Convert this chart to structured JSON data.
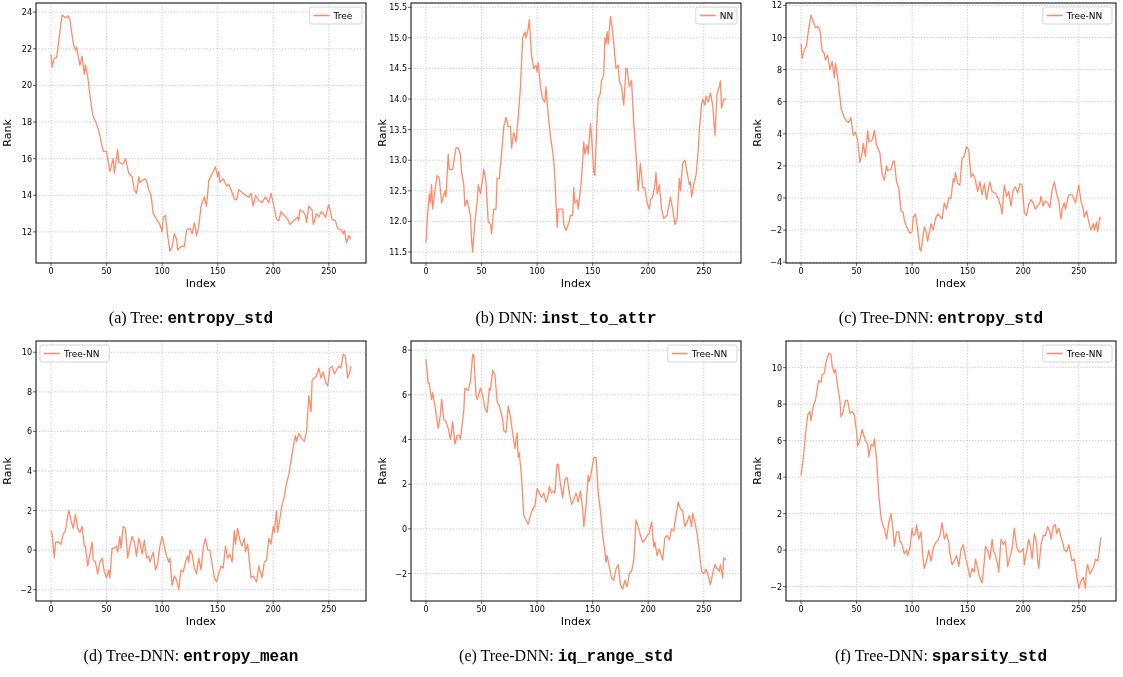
{
  "chart_data": [
    {
      "type": "line",
      "title": "(a) Tree: entropy_std",
      "xlabel": "Index",
      "ylabel": "Rank",
      "xlim": [
        -13.5,
        283.5
      ],
      "xticks": [
        0,
        50,
        100,
        150,
        200,
        250
      ],
      "ylim": [
        10.3,
        24.5
      ],
      "yticks": [
        12,
        14,
        16,
        18,
        20,
        22,
        24
      ],
      "grid": true,
      "legend": "top right",
      "series": [
        {
          "name": "Tree",
          "color": "#ff8c69",
          "x": [
            0,
            1,
            3,
            5,
            10,
            13,
            15,
            17,
            20,
            22,
            23,
            26,
            28,
            30,
            31,
            33,
            36,
            38,
            41,
            43,
            47,
            50,
            53,
            56,
            57,
            60,
            61,
            65,
            67,
            70,
            73,
            75,
            77,
            79,
            80,
            84,
            86,
            88,
            90,
            92,
            95,
            98,
            100,
            101,
            103,
            105,
            107,
            109,
            111,
            113,
            114,
            117,
            120,
            122,
            125,
            127,
            129,
            131,
            133,
            135,
            138,
            140,
            142,
            146,
            148,
            150,
            151,
            152,
            155,
            158,
            160,
            162,
            165,
            167,
            169,
            175,
            178,
            180,
            182,
            184,
            187,
            190,
            193,
            196,
            198,
            201,
            203,
            205,
            207,
            210,
            213,
            215,
            220,
            222,
            223,
            224,
            227,
            229,
            230,
            232,
            235,
            236,
            239,
            241,
            243,
            245,
            247,
            250,
            253,
            256,
            258,
            261,
            263,
            264,
            266,
            268,
            270
          ],
          "values": [
            21.7,
            21.0,
            21.5,
            21.5,
            23.85,
            23.7,
            23.8,
            23.6,
            22.3,
            21.9,
            22.1,
            21.1,
            21.6,
            20.6,
            21.1,
            20.5,
            19.0,
            18.3,
            17.9,
            17.5,
            16.4,
            16.4,
            15.3,
            16.0,
            15.2,
            16.5,
            15.8,
            15.7,
            16.0,
            15.2,
            15.0,
            14.3,
            14.1,
            15.0,
            14.7,
            14.9,
            14.8,
            14.3,
            14.0,
            13.0,
            12.7,
            12.4,
            12.0,
            12.8,
            12.9,
            11.8,
            10.95,
            11.2,
            11.9,
            11.6,
            11.0,
            11.2,
            11.2,
            12.1,
            12.2,
            11.9,
            12.5,
            11.8,
            12.3,
            13.4,
            13.9,
            13.4,
            14.8,
            15.3,
            15.55,
            15.0,
            15.3,
            14.7,
            14.9,
            14.5,
            14.6,
            14.3,
            13.8,
            13.75,
            14.3,
            14.0,
            13.9,
            14.1,
            13.4,
            14.0,
            13.7,
            13.6,
            13.9,
            13.6,
            14.1,
            13.3,
            12.7,
            12.6,
            13.1,
            12.9,
            12.7,
            12.4,
            12.7,
            12.8,
            12.6,
            13.2,
            13.1,
            12.9,
            12.5,
            13.4,
            13.2,
            12.4,
            13.0,
            12.8,
            13.1,
            13.0,
            12.8,
            13.5,
            12.7,
            12.6,
            12.2,
            12.1,
            11.9,
            12.1,
            11.4,
            11.8,
            11.6
          ]
        }
      ]
    },
    {
      "type": "line",
      "title": "(b) DNN: inst_to_attr",
      "xlabel": "Index",
      "ylabel": "Rank",
      "xlim": [
        -13.5,
        283.5
      ],
      "xticks": [
        0,
        50,
        100,
        150,
        200,
        250
      ],
      "ylim": [
        11.32,
        15.57
      ],
      "yticks": [
        11.5,
        {
          "value": 12,
          "label": "12.0"
        },
        12.5,
        {
          "value": 13,
          "label": "13.0"
        },
        13.5,
        {
          "value": 14,
          "label": "14.0"
        },
        14.5,
        {
          "value": 15,
          "label": "15.0"
        },
        15.5
      ],
      "grid": true,
      "legend": "top right",
      "series": [
        {
          "name": "NN",
          "color": "#ff8c69",
          "x": [
            0,
            1,
            3,
            4,
            5,
            6,
            8,
            10,
            12,
            14,
            17,
            18,
            20,
            21,
            24,
            27,
            29,
            31,
            32,
            34,
            35,
            37,
            40,
            41,
            42,
            44,
            46,
            47,
            49,
            51,
            52,
            54,
            56,
            58,
            59,
            61,
            63,
            64,
            66,
            68,
            70,
            72,
            74,
            76,
            77,
            79,
            81,
            83,
            85,
            87,
            89,
            90,
            92,
            93,
            95,
            97,
            99,
            100,
            101,
            103,
            105,
            107,
            108,
            110,
            112,
            115,
            116,
            118,
            119,
            123,
            124,
            126,
            129,
            130,
            132,
            133,
            134,
            136,
            137,
            140,
            142,
            143,
            145,
            146,
            148,
            149,
            151,
            152,
            154,
            155,
            157,
            158,
            160,
            161,
            162,
            163,
            164,
            166,
            168,
            170,
            171,
            173,
            174,
            176,
            178,
            180,
            181,
            183,
            185,
            187,
            189,
            191,
            193,
            195,
            197,
            199,
            201,
            202,
            204,
            206,
            207,
            208,
            210,
            212,
            214,
            217,
            220,
            222,
            224,
            226,
            228,
            229,
            231,
            233,
            235,
            237,
            238,
            239,
            241,
            243,
            245,
            246,
            248,
            249,
            251,
            252,
            254,
            256,
            258,
            260,
            262,
            264,
            265,
            266,
            268,
            270
          ],
          "values": [
            11.65,
            12.0,
            12.45,
            12.3,
            12.6,
            12.2,
            12.5,
            12.75,
            12.7,
            12.3,
            12.5,
            12.4,
            13.1,
            12.85,
            12.85,
            13.2,
            13.2,
            13.1,
            12.8,
            12.6,
            12.25,
            12.35,
            12.1,
            11.7,
            11.5,
            12.0,
            12.3,
            12.6,
            12.45,
            12.7,
            12.85,
            12.65,
            12.0,
            11.95,
            11.8,
            12.2,
            12.2,
            12.7,
            12.7,
            13.1,
            13.55,
            13.7,
            13.55,
            13.55,
            13.2,
            13.45,
            13.3,
            13.7,
            14.2,
            15.0,
            15.1,
            15.0,
            15.15,
            15.3,
            14.7,
            14.5,
            14.55,
            14.45,
            14.6,
            14.2,
            14.0,
            13.95,
            14.2,
            13.75,
            13.4,
            13.0,
            12.7,
            11.9,
            12.2,
            12.2,
            11.95,
            11.85,
            12.0,
            12.1,
            12.1,
            12.55,
            12.3,
            12.35,
            12.2,
            12.7,
            13.3,
            13.1,
            13.25,
            13.1,
            13.6,
            13.4,
            12.8,
            12.75,
            13.7,
            14.0,
            14.1,
            14.3,
            14.4,
            15.0,
            14.9,
            15.1,
            14.9,
            15.35,
            15.1,
            14.7,
            14.5,
            14.55,
            14.3,
            14.2,
            13.9,
            14.5,
            14.5,
            14.2,
            14.3,
            13.6,
            13.1,
            12.5,
            12.95,
            12.55,
            12.55,
            12.3,
            12.2,
            12.35,
            12.4,
            12.6,
            12.8,
            12.45,
            12.6,
            12.2,
            12.05,
            12.1,
            12.4,
            12.2,
            11.95,
            12.05,
            12.7,
            12.5,
            12.95,
            13.0,
            12.8,
            12.6,
            12.65,
            12.4,
            12.6,
            12.75,
            13.15,
            13.5,
            13.9,
            14.0,
            13.9,
            14.05,
            13.95,
            14.1,
            13.9,
            13.4,
            14.1,
            14.2,
            14.3,
            13.85,
            14.0,
            14.0
          ]
        }
      ]
    },
    {
      "type": "line",
      "title": "(c) Tree-DNN: entropy_std",
      "xlabel": "Index",
      "ylabel": "Rank",
      "xlim": [
        -13.5,
        283.5
      ],
      "xticks": [
        0,
        50,
        100,
        150,
        200,
        250
      ],
      "ylim": [
        -4.05,
        12.15
      ],
      "yticks": [
        {
          "value": -4,
          "label": "−4"
        },
        {
          "value": -2,
          "label": "−2"
        },
        0,
        2,
        4,
        6,
        8,
        10,
        12
      ],
      "grid": true,
      "legend": "top right",
      "series": [
        {
          "name": "Tree-NN",
          "color": "#ff8c69",
          "x": [
            0,
            1,
            3,
            5,
            7,
            9,
            11,
            13,
            15,
            17,
            19,
            21,
            22,
            24,
            26,
            28,
            30,
            31,
            33,
            35,
            36,
            39,
            41,
            43,
            45,
            47,
            49,
            51,
            53,
            55,
            56,
            58,
            60,
            61,
            64,
            66,
            68,
            71,
            73,
            75,
            77,
            78,
            81,
            83,
            84,
            86,
            88,
            90,
            92,
            93,
            95,
            98,
            100,
            101,
            103,
            105,
            107,
            108,
            110,
            111,
            113,
            114,
            117,
            119,
            121,
            123,
            126,
            127,
            129,
            131,
            133,
            135,
            137,
            138,
            139,
            141,
            143,
            145,
            147,
            149,
            151,
            153,
            155,
            157,
            159,
            161,
            163,
            165,
            167,
            168,
            170,
            172,
            175,
            178,
            180,
            181,
            183,
            185,
            187,
            189,
            191,
            193,
            195,
            197,
            199,
            201,
            203,
            205,
            207,
            209,
            211,
            213,
            215,
            216,
            218,
            220,
            222,
            224,
            226,
            228,
            230,
            232,
            234,
            235,
            237,
            238,
            241,
            244,
            247,
            250,
            252,
            254,
            255,
            257,
            259,
            261,
            263,
            264,
            266,
            267,
            269,
            270
          ],
          "values": [
            9.6,
            8.7,
            9.2,
            9.5,
            10.6,
            11.4,
            11.0,
            10.6,
            10.7,
            10.5,
            9.2,
            9.0,
            8.6,
            8.9,
            8.0,
            8.5,
            7.5,
            8.4,
            7.5,
            6.3,
            5.6,
            5.0,
            4.8,
            4.7,
            5.0,
            3.9,
            4.1,
            3.6,
            2.2,
            2.8,
            3.4,
            2.6,
            4.2,
            3.5,
            3.6,
            4.2,
            3.3,
            2.8,
            1.5,
            1.1,
            2.0,
            1.7,
            1.8,
            2.3,
            2.3,
            1.0,
            0.6,
            -0.8,
            -0.9,
            -1.4,
            -1.8,
            -2.2,
            -2.1,
            -1.2,
            -1.0,
            -2.0,
            -3.2,
            -3.3,
            -2.3,
            -1.8,
            -2.2,
            -2.7,
            -1.6,
            -2.0,
            -1.3,
            -1.0,
            -1.2,
            -1.3,
            -0.3,
            -0.7,
            0.0,
            0.0,
            1.2,
            1.0,
            1.6,
            0.9,
            0.8,
            2.5,
            2.6,
            3.2,
            3.0,
            1.3,
            1.5,
            1.1,
            0.4,
            1.0,
            0.2,
            0.9,
            -0.1,
            0.3,
            1.0,
            0.4,
            0.3,
            -0.1,
            -0.6,
            -1.0,
            0.8,
            0.1,
            0.4,
            -0.5,
            0.5,
            0.7,
            0.3,
            0.9,
            0.8,
            -0.9,
            -1.1,
            -0.4,
            -0.1,
            -0.3,
            -0.7,
            -0.5,
            -0.3,
            0.1,
            -0.5,
            -0.2,
            -0.3,
            -0.6,
            0.5,
            1.0,
            0.3,
            -0.2,
            -1.3,
            -0.7,
            -0.3,
            -0.7,
            0.2,
            0.2,
            -0.3,
            0.8,
            -0.2,
            -0.7,
            -1.2,
            -0.8,
            -1.5,
            -2.0,
            -1.6,
            -2.0,
            -1.5,
            -2.1,
            -1.2,
            -1.3
          ]
        }
      ]
    },
    {
      "type": "line",
      "title": "(d) Tree-DNN: entropy_mean",
      "xlabel": "Index",
      "ylabel": "Rank",
      "xlim": [
        -13.5,
        283.5
      ],
      "xticks": [
        0,
        50,
        100,
        150,
        200,
        250
      ],
      "ylim": [
        -2.57,
        10.57
      ],
      "yticks": [
        {
          "value": -2,
          "label": "−2"
        },
        0,
        2,
        4,
        6,
        8,
        10
      ],
      "grid": true,
      "legend": "top left",
      "series": [
        {
          "name": "Tree-NN",
          "color": "#ff8c69",
          "x": [
            0,
            1,
            3,
            4,
            7,
            9,
            11,
            13,
            16,
            18,
            20,
            22,
            24,
            26,
            28,
            30,
            31,
            33,
            35,
            37,
            38,
            40,
            42,
            44,
            46,
            48,
            50,
            52,
            53,
            55,
            57,
            59,
            60,
            62,
            63,
            65,
            67,
            69,
            71,
            73,
            75,
            77,
            79,
            80,
            82,
            84,
            86,
            88,
            89,
            92,
            94,
            96,
            98,
            100,
            102,
            104,
            106,
            107,
            109,
            111,
            113,
            115,
            117,
            119,
            121,
            123,
            124,
            125,
            127,
            129,
            131,
            133,
            135,
            137,
            139,
            141,
            143,
            145,
            147,
            149,
            151,
            153,
            155,
            157,
            159,
            161,
            163,
            165,
            166,
            168,
            170,
            172,
            174,
            175,
            177,
            180,
            182,
            185,
            187,
            190,
            192,
            194,
            196,
            198,
            200,
            201,
            203,
            204,
            206,
            208,
            210,
            212,
            214,
            216,
            218,
            220,
            221,
            223,
            225,
            228,
            230,
            232,
            234,
            235,
            237,
            239,
            241,
            243,
            245,
            247,
            249,
            251,
            253,
            255,
            257,
            259,
            261,
            263,
            265,
            267,
            269,
            270
          ],
          "values": [
            1.0,
            0.8,
            -0.4,
            0.4,
            0.4,
            0.3,
            0.8,
            1.0,
            2.0,
            1.5,
            1.1,
            1.8,
            1.1,
            0.9,
            1.2,
            0.2,
            0.2,
            -0.8,
            -0.2,
            0.4,
            -0.5,
            -0.6,
            -1.2,
            -0.6,
            -0.4,
            -1.1,
            -1.4,
            -1.0,
            -1.4,
            0.1,
            0.1,
            0.2,
            -0.1,
            0.7,
            0.1,
            1.2,
            1.1,
            -0.4,
            0.2,
            0.7,
            0.4,
            -0.3,
            0.6,
            0.4,
            -0.2,
            0.5,
            -0.4,
            -0.3,
            -0.6,
            -0.1,
            -1.0,
            -0.7,
            0.2,
            0.7,
            0.2,
            -0.3,
            -0.6,
            -0.4,
            -1.8,
            -1.3,
            -1.5,
            -2.0,
            -1.0,
            -1.1,
            -0.6,
            -0.3,
            -0.6,
            0.0,
            -0.2,
            -0.9,
            -1.2,
            -0.4,
            -1.0,
            0.1,
            0.6,
            0.0,
            0.0,
            -0.7,
            -1.4,
            -1.6,
            -1.2,
            -0.8,
            -0.9,
            0.2,
            -0.4,
            -0.2,
            -0.6,
            1.0,
            0.3,
            1.1,
            0.5,
            0.2,
            0.6,
            -0.1,
            0.3,
            -1.4,
            -1.3,
            -1.6,
            -0.8,
            -1.4,
            -0.6,
            -0.5,
            0.6,
            0.3,
            1.2,
            0.9,
            2.0,
            0.9,
            1.6,
            2.3,
            2.7,
            3.4,
            3.8,
            4.5,
            5.2,
            5.8,
            5.5,
            5.9,
            5.7,
            5.5,
            6.0,
            7.8,
            7.0,
            8.6,
            8.7,
            8.8,
            9.2,
            8.7,
            9.0,
            8.5,
            8.3,
            9.2,
            9.3,
            8.9,
            9.1,
            9.3,
            9.2,
            9.9,
            9.8,
            8.7,
            9.0,
            9.3
          ]
        }
      ]
    },
    {
      "type": "line",
      "title": "(e) Tree-DNN: iq_range_std",
      "xlabel": "Index",
      "ylabel": "Rank",
      "xlim": [
        -13.5,
        283.5
      ],
      "xticks": [
        0,
        50,
        100,
        150,
        200,
        250
      ],
      "ylim": [
        -3.23,
        8.41
      ],
      "yticks": [
        {
          "value": -2,
          "label": "−2"
        },
        0,
        2,
        4,
        6,
        8
      ],
      "grid": true,
      "legend": "top right",
      "series": [
        {
          "name": "Tree-NN",
          "color": "#ff8c69",
          "x": [
            0,
            2,
            3,
            5,
            6,
            9,
            11,
            13,
            14,
            16,
            18,
            20,
            22,
            24,
            26,
            28,
            30,
            31,
            34,
            35,
            38,
            40,
            42,
            43,
            45,
            46,
            48,
            49,
            51,
            53,
            55,
            57,
            58,
            60,
            62,
            64,
            66,
            69,
            70,
            72,
            74,
            76,
            78,
            80,
            82,
            83,
            84,
            86,
            88,
            90,
            92,
            94,
            96,
            98,
            100,
            102,
            104,
            106,
            108,
            110,
            111,
            113,
            115,
            116,
            118,
            119,
            121,
            123,
            125,
            127,
            129,
            131,
            133,
            135,
            137,
            139,
            141,
            142,
            144,
            146,
            147,
            149,
            151,
            153,
            155,
            157,
            159,
            161,
            162,
            163,
            165,
            167,
            169,
            171,
            173,
            175,
            177,
            179,
            181,
            183,
            185,
            187,
            189,
            191,
            193,
            195,
            197,
            199,
            201,
            202,
            203,
            205,
            206,
            208,
            210,
            213,
            215,
            217,
            219,
            221,
            223,
            225,
            227,
            229,
            231,
            233,
            235,
            237,
            239,
            240,
            242,
            244,
            246,
            248,
            250,
            252,
            254,
            256,
            258,
            260,
            262,
            264,
            265,
            267,
            268,
            270
          ],
          "values": [
            7.6,
            6.5,
            6.5,
            5.8,
            6.1,
            5.2,
            4.5,
            5.1,
            5.8,
            4.9,
            4.8,
            4.5,
            4.0,
            4.8,
            3.8,
            4.2,
            4.2,
            4.0,
            5.3,
            6.3,
            6.2,
            6.6,
            7.8,
            7.8,
            6.0,
            5.8,
            6.1,
            6.3,
            6.0,
            5.4,
            5.2,
            6.3,
            6.2,
            7.1,
            6.9,
            5.7,
            5.5,
            4.9,
            4.4,
            4.3,
            5.5,
            5.0,
            4.3,
            3.6,
            4.3,
            3.2,
            3.4,
            2.3,
            0.6,
            0.4,
            0.2,
            0.6,
            0.9,
            1.0,
            1.8,
            1.6,
            1.4,
            1.6,
            1.2,
            1.5,
            1.9,
            1.6,
            1.7,
            1.6,
            2.9,
            2.9,
            2.0,
            1.4,
            2.2,
            2.3,
            1.6,
            1.1,
            1.3,
            1.6,
            1.2,
            1.7,
            0.9,
            0.1,
            1.0,
            2.4,
            2.1,
            2.6,
            3.2,
            3.2,
            1.6,
            0.8,
            -0.3,
            -1.0,
            -1.5,
            -1.2,
            -1.7,
            -2.2,
            -2.3,
            -1.8,
            -1.6,
            -2.5,
            -2.7,
            -2.3,
            -2.6,
            -2.0,
            -1.9,
            -1.4,
            0.4,
            0.1,
            -0.3,
            -0.6,
            -0.5,
            -0.3,
            -0.2,
            0.1,
            0.3,
            -0.8,
            -0.6,
            -1.2,
            -0.9,
            -1.4,
            -0.4,
            -0.3,
            -0.5,
            0.0,
            -0.1,
            0.6,
            1.2,
            0.9,
            0.8,
            0.1,
            0.3,
            0.6,
            0.1,
            0.7,
            0.3,
            -0.2,
            -1.0,
            -1.9,
            -2.0,
            -1.8,
            -2.1,
            -2.5,
            -2.0,
            -1.6,
            -1.8,
            -1.9,
            -1.6,
            -2.2,
            -1.3,
            -1.4
          ]
        }
      ]
    },
    {
      "type": "line",
      "title": "(f) Tree-DNN: sparsity_std",
      "xlabel": "Index",
      "ylabel": "Rank",
      "xlim": [
        -13.5,
        283.5
      ],
      "xticks": [
        0,
        50,
        100,
        150,
        200,
        250
      ],
      "ylim": [
        -2.79,
        11.46
      ],
      "yticks": [
        {
          "value": -2,
          "label": "−2"
        },
        0,
        2,
        4,
        6,
        8,
        10
      ],
      "grid": true,
      "legend": "top right",
      "series": [
        {
          "name": "Tree-NN",
          "color": "#ff8c69",
          "x": [
            0,
            2,
            4,
            6,
            8,
            9,
            11,
            13,
            15,
            16,
            18,
            19,
            21,
            22,
            23,
            25,
            27,
            28,
            30,
            31,
            33,
            35,
            36,
            38,
            40,
            42,
            44,
            46,
            48,
            50,
            51,
            53,
            55,
            57,
            58,
            60,
            61,
            63,
            65,
            66,
            68,
            70,
            72,
            74,
            75,
            77,
            79,
            81,
            83,
            84,
            86,
            88,
            89,
            91,
            93,
            95,
            96,
            98,
            100,
            101,
            103,
            104,
            106,
            108,
            110,
            111,
            113,
            115,
            117,
            119,
            121,
            123,
            125,
            127,
            129,
            131,
            133,
            134,
            136,
            138,
            140,
            142,
            144,
            146,
            148,
            150,
            152,
            154,
            156,
            157,
            159,
            160,
            162,
            163,
            165,
            166,
            168,
            170,
            172,
            173,
            175,
            177,
            178,
            180,
            182,
            184,
            186,
            188,
            190,
            192,
            194,
            196,
            198,
            200,
            201,
            203,
            205,
            207,
            208,
            210,
            212,
            213,
            214,
            216,
            218,
            220,
            222,
            224,
            225,
            227,
            229,
            230,
            232,
            234,
            236,
            237,
            239,
            241,
            243,
            244,
            246,
            248,
            250,
            252,
            254,
            256,
            257,
            258,
            260,
            262,
            264,
            265,
            267,
            268,
            270
          ],
          "values": [
            4.1,
            5.0,
            6.3,
            7.4,
            7.6,
            7.1,
            7.9,
            8.2,
            9.0,
            9.3,
            9.2,
            9.6,
            9.7,
            10.1,
            10.4,
            10.8,
            10.7,
            10.1,
            9.7,
            9.9,
            9.0,
            8.2,
            7.3,
            7.6,
            8.2,
            8.2,
            7.5,
            7.6,
            7.4,
            6.5,
            5.7,
            6.0,
            6.6,
            6.2,
            6.0,
            5.8,
            5.1,
            5.8,
            5.7,
            6.1,
            5.0,
            3.0,
            1.8,
            1.3,
            1.2,
            0.6,
            1.5,
            2.0,
            1.0,
            0.2,
            1.0,
            1.0,
            0.5,
            0.3,
            -0.2,
            0.0,
            -0.3,
            0.1,
            1.2,
            0.8,
            0.9,
            1.4,
            0.6,
            1.0,
            -0.6,
            -1.0,
            -0.6,
            0.0,
            -0.6,
            0.1,
            0.4,
            0.5,
            0.8,
            1.5,
            0.6,
            0.9,
            0.4,
            -0.2,
            -0.8,
            -0.6,
            -0.3,
            -0.9,
            0.0,
            0.3,
            -0.4,
            -0.9,
            -1.5,
            -1.0,
            -1.2,
            -0.5,
            -1.0,
            -1.3,
            -1.7,
            -1.8,
            -0.6,
            0.2,
            0.0,
            -0.5,
            0.6,
            0.0,
            -0.3,
            -0.8,
            -1.2,
            0.6,
            0.3,
            0.5,
            -0.9,
            -0.4,
            0.1,
            1.2,
            0.2,
            -0.1,
            -0.1,
            0.1,
            -0.8,
            -0.1,
            0.6,
            0.0,
            -0.5,
            0.9,
            0.4,
            -0.6,
            -1.0,
            0.3,
            0.8,
            0.8,
            1.3,
            1.0,
            0.6,
            1.3,
            1.4,
            0.9,
            1.2,
            0.7,
            0.3,
            0.0,
            -0.1,
            0.3,
            -0.3,
            -0.6,
            -0.5,
            -1.3,
            -2.1,
            -1.7,
            -1.5,
            -2.1,
            -1.0,
            -0.8,
            -1.3,
            -1.1,
            -0.8,
            -0.5,
            -0.6,
            -0.2,
            0.7
          ]
        }
      ]
    }
  ]
}
